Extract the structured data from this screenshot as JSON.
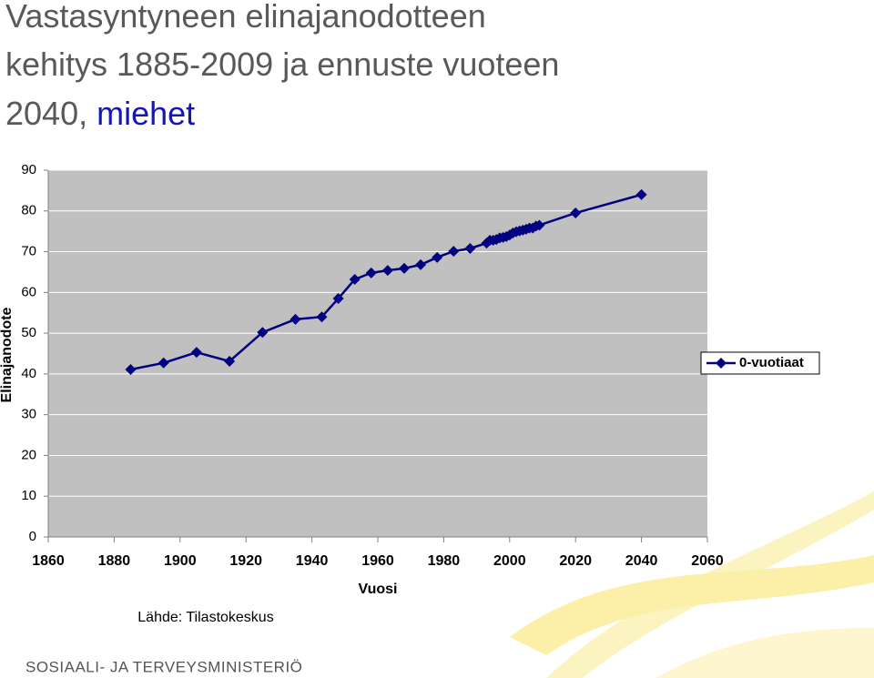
{
  "chart_data": {
    "type": "line",
    "title_lines": [
      "Vastasyntyneen elinajanodotteen",
      "kehitys 1885-2009 ja ennuste vuoteen",
      "2040,"
    ],
    "title_highlight": "miehet",
    "x_label": "Vuosi",
    "y_label": "Elinajanodote",
    "x": [
      1885,
      1895,
      1905,
      1915,
      1925,
      1935,
      1943,
      1948,
      1953,
      1958,
      1963,
      1968,
      1973,
      1978,
      1983,
      1988,
      1993,
      1994,
      1995,
      1996,
      1997,
      1998,
      1999,
      2000,
      2001,
      2002,
      2003,
      2004,
      2005,
      2006,
      2007,
      2008,
      2009,
      2020,
      2040
    ],
    "series": [
      {
        "name": "0-vuotiaat",
        "color": "#000080",
        "values": [
          41.1,
          42.7,
          45.3,
          43.1,
          50.2,
          53.4,
          54.0,
          58.5,
          63.2,
          64.8,
          65.4,
          65.9,
          66.8,
          68.6,
          70.1,
          70.8,
          72.1,
          72.8,
          72.8,
          73.0,
          73.4,
          73.5,
          73.7,
          74.1,
          74.6,
          74.9,
          75.1,
          75.3,
          75.5,
          75.8,
          75.8,
          76.3,
          76.5,
          79.5,
          84.0
        ]
      }
    ],
    "xlim": [
      1860,
      2060
    ],
    "xticks": [
      1860,
      1880,
      1900,
      1920,
      1940,
      1960,
      1980,
      2000,
      2020,
      2040,
      2060
    ],
    "ylim": [
      0,
      90
    ],
    "yticks": [
      0,
      10,
      20,
      30,
      40,
      50,
      60,
      70,
      80,
      90
    ],
    "grid": true,
    "legend": "right",
    "source": "Lähde: Tilastokeskus",
    "footer": "SOSIAALI- JA TERVEYSMINISTERIÖ"
  }
}
